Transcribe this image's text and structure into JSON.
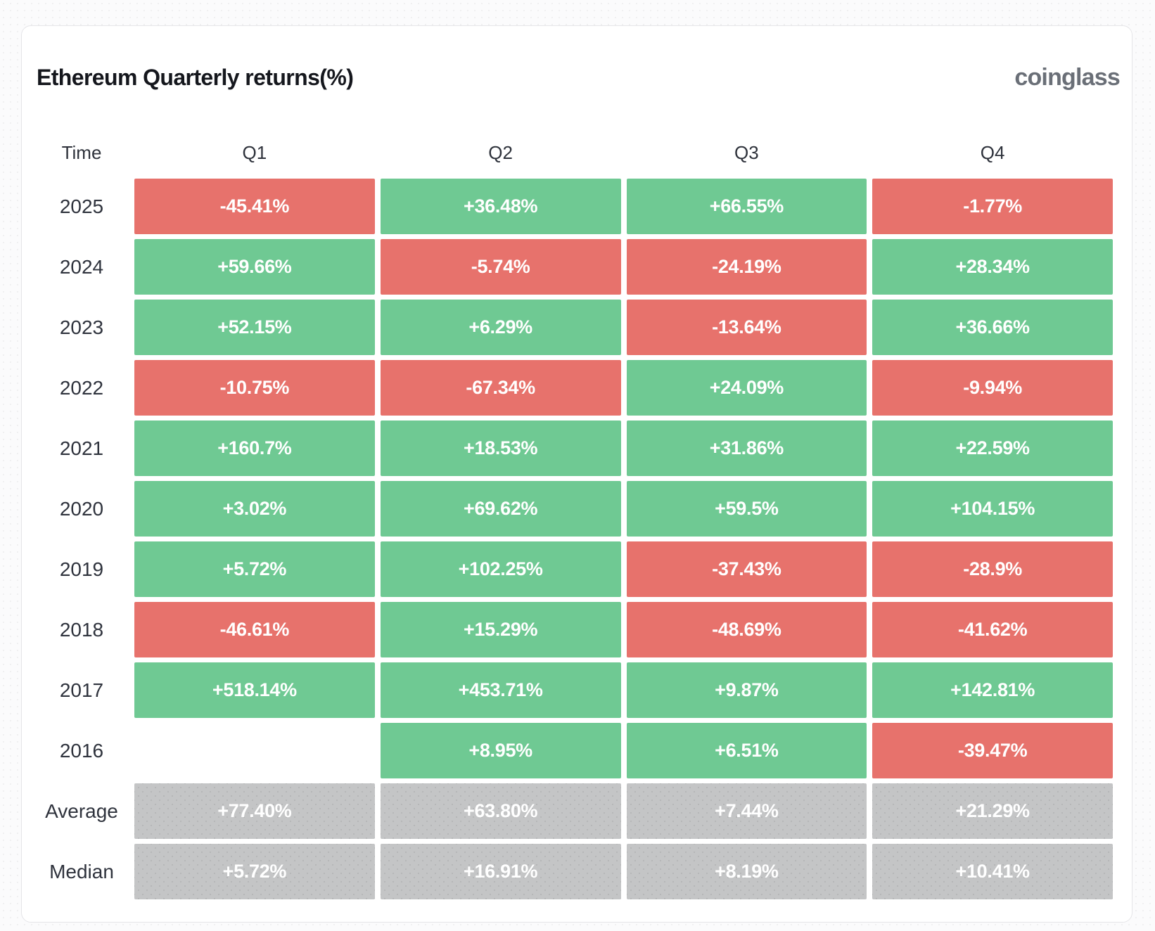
{
  "header": {
    "title": "Ethereum Quarterly returns(%)",
    "brand": "coinglass"
  },
  "table": {
    "columns": [
      "Time",
      "Q1",
      "Q2",
      "Q3",
      "Q4"
    ],
    "rows": [
      {
        "label": "2025",
        "cells": [
          {
            "text": "-45.41%",
            "type": "negative"
          },
          {
            "text": "+36.48%",
            "type": "positive"
          },
          {
            "text": "+66.55%",
            "type": "positive"
          },
          {
            "text": "-1.77%",
            "type": "negative"
          }
        ]
      },
      {
        "label": "2024",
        "cells": [
          {
            "text": "+59.66%",
            "type": "positive"
          },
          {
            "text": "-5.74%",
            "type": "negative"
          },
          {
            "text": "-24.19%",
            "type": "negative"
          },
          {
            "text": "+28.34%",
            "type": "positive"
          }
        ]
      },
      {
        "label": "2023",
        "cells": [
          {
            "text": "+52.15%",
            "type": "positive"
          },
          {
            "text": "+6.29%",
            "type": "positive"
          },
          {
            "text": "-13.64%",
            "type": "negative"
          },
          {
            "text": "+36.66%",
            "type": "positive"
          }
        ]
      },
      {
        "label": "2022",
        "cells": [
          {
            "text": "-10.75%",
            "type": "negative"
          },
          {
            "text": "-67.34%",
            "type": "negative"
          },
          {
            "text": "+24.09%",
            "type": "positive"
          },
          {
            "text": "-9.94%",
            "type": "negative"
          }
        ]
      },
      {
        "label": "2021",
        "cells": [
          {
            "text": "+160.7%",
            "type": "positive"
          },
          {
            "text": "+18.53%",
            "type": "positive"
          },
          {
            "text": "+31.86%",
            "type": "positive"
          },
          {
            "text": "+22.59%",
            "type": "positive"
          }
        ]
      },
      {
        "label": "2020",
        "cells": [
          {
            "text": "+3.02%",
            "type": "positive"
          },
          {
            "text": "+69.62%",
            "type": "positive"
          },
          {
            "text": "+59.5%",
            "type": "positive"
          },
          {
            "text": "+104.15%",
            "type": "positive"
          }
        ]
      },
      {
        "label": "2019",
        "cells": [
          {
            "text": "+5.72%",
            "type": "positive"
          },
          {
            "text": "+102.25%",
            "type": "positive"
          },
          {
            "text": "-37.43%",
            "type": "negative"
          },
          {
            "text": "-28.9%",
            "type": "negative"
          }
        ]
      },
      {
        "label": "2018",
        "cells": [
          {
            "text": "-46.61%",
            "type": "negative"
          },
          {
            "text": "+15.29%",
            "type": "positive"
          },
          {
            "text": "-48.69%",
            "type": "negative"
          },
          {
            "text": "-41.62%",
            "type": "negative"
          }
        ]
      },
      {
        "label": "2017",
        "cells": [
          {
            "text": "+518.14%",
            "type": "positive"
          },
          {
            "text": "+453.71%",
            "type": "positive"
          },
          {
            "text": "+9.87%",
            "type": "positive"
          },
          {
            "text": "+142.81%",
            "type": "positive"
          }
        ]
      },
      {
        "label": "2016",
        "cells": [
          {
            "text": "",
            "type": "empty"
          },
          {
            "text": "+8.95%",
            "type": "positive"
          },
          {
            "text": "+6.51%",
            "type": "positive"
          },
          {
            "text": "-39.47%",
            "type": "negative"
          }
        ]
      },
      {
        "label": "Average",
        "cells": [
          {
            "text": "+77.40%",
            "type": "neutral"
          },
          {
            "text": "+63.80%",
            "type": "neutral"
          },
          {
            "text": "+7.44%",
            "type": "neutral"
          },
          {
            "text": "+21.29%",
            "type": "neutral"
          }
        ]
      },
      {
        "label": "Median",
        "cells": [
          {
            "text": "+5.72%",
            "type": "neutral"
          },
          {
            "text": "+16.91%",
            "type": "neutral"
          },
          {
            "text": "+8.19%",
            "type": "neutral"
          },
          {
            "text": "+10.41%",
            "type": "neutral"
          }
        ]
      }
    ]
  },
  "colors": {
    "positive": "#6fc993",
    "negative": "#e7726c",
    "neutral": "#c4c5c6",
    "title_text": "#15171d",
    "brand_text": "#6a6f77"
  },
  "chart_data": {
    "type": "heatmap",
    "title": "Ethereum Quarterly returns(%)",
    "columns": [
      "Q1",
      "Q2",
      "Q3",
      "Q4"
    ],
    "rows": [
      "2025",
      "2024",
      "2023",
      "2022",
      "2021",
      "2020",
      "2019",
      "2018",
      "2017",
      "2016",
      "Average",
      "Median"
    ],
    "values": [
      [
        -45.41,
        36.48,
        66.55,
        -1.77
      ],
      [
        59.66,
        -5.74,
        -24.19,
        28.34
      ],
      [
        52.15,
        6.29,
        -13.64,
        36.66
      ],
      [
        -10.75,
        -67.34,
        24.09,
        -9.94
      ],
      [
        160.7,
        18.53,
        31.86,
        22.59
      ],
      [
        3.02,
        69.62,
        59.5,
        104.15
      ],
      [
        5.72,
        102.25,
        -37.43,
        -28.9
      ],
      [
        -46.61,
        15.29,
        -48.69,
        -41.62
      ],
      [
        518.14,
        453.71,
        9.87,
        142.81
      ],
      [
        null,
        8.95,
        6.51,
        -39.47
      ],
      [
        77.4,
        63.8,
        7.44,
        21.29
      ],
      [
        5.72,
        16.91,
        8.19,
        10.41
      ]
    ],
    "legend": "green = positive return, red = negative return, gray = aggregate row, blank = no data"
  }
}
